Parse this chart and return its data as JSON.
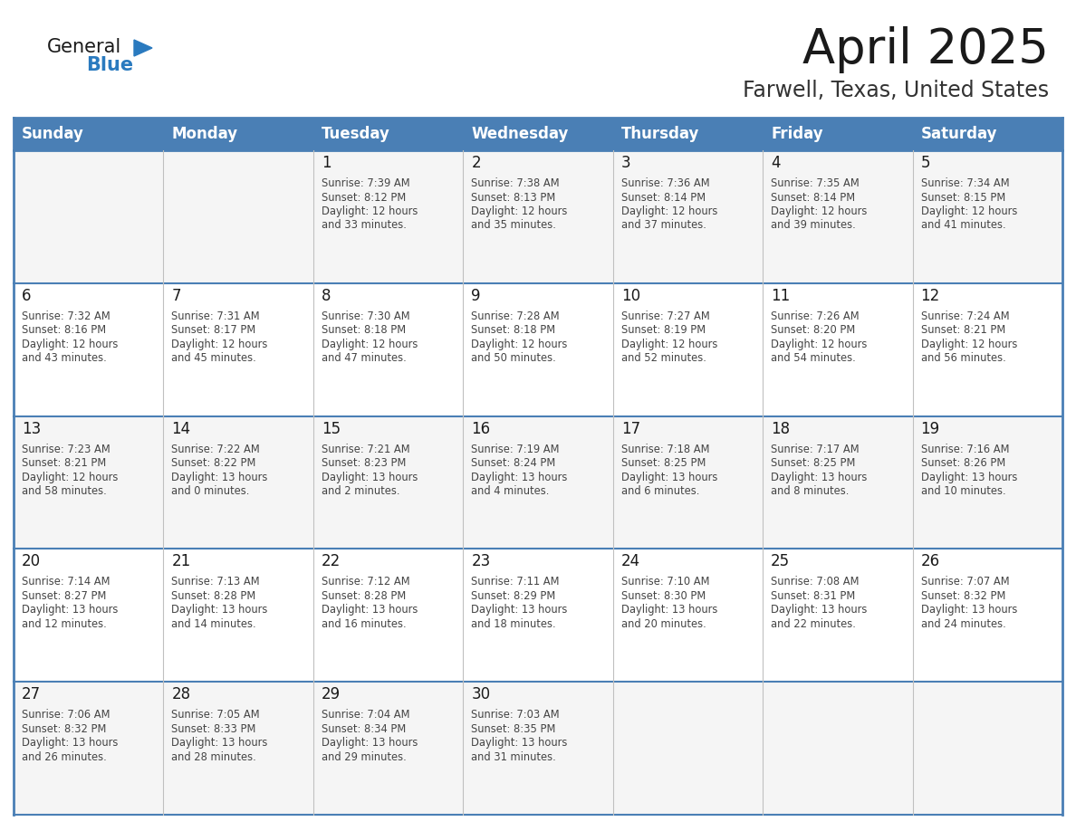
{
  "title": "April 2025",
  "subtitle": "Farwell, Texas, United States",
  "header_bg_color": "#4a7fb5",
  "header_text_color": "#ffffff",
  "row_bg_even": "#f5f5f5",
  "row_bg_odd": "#ffffff",
  "border_color": "#4a7fb5",
  "cell_divider_color": "#c0c0c0",
  "day_headers": [
    "Sunday",
    "Monday",
    "Tuesday",
    "Wednesday",
    "Thursday",
    "Friday",
    "Saturday"
  ],
  "title_color": "#1a1a1a",
  "subtitle_color": "#333333",
  "cell_text_color": "#444444",
  "day_num_color": "#1a1a1a",
  "logo_general_color": "#1a1a1a",
  "logo_blue_color": "#2a7abf",
  "weeks": [
    [
      {
        "day": null,
        "lines": []
      },
      {
        "day": null,
        "lines": []
      },
      {
        "day": "1",
        "lines": [
          "Sunrise: 7:39 AM",
          "Sunset: 8:12 PM",
          "Daylight: 12 hours",
          "and 33 minutes."
        ]
      },
      {
        "day": "2",
        "lines": [
          "Sunrise: 7:38 AM",
          "Sunset: 8:13 PM",
          "Daylight: 12 hours",
          "and 35 minutes."
        ]
      },
      {
        "day": "3",
        "lines": [
          "Sunrise: 7:36 AM",
          "Sunset: 8:14 PM",
          "Daylight: 12 hours",
          "and 37 minutes."
        ]
      },
      {
        "day": "4",
        "lines": [
          "Sunrise: 7:35 AM",
          "Sunset: 8:14 PM",
          "Daylight: 12 hours",
          "and 39 minutes."
        ]
      },
      {
        "day": "5",
        "lines": [
          "Sunrise: 7:34 AM",
          "Sunset: 8:15 PM",
          "Daylight: 12 hours",
          "and 41 minutes."
        ]
      }
    ],
    [
      {
        "day": "6",
        "lines": [
          "Sunrise: 7:32 AM",
          "Sunset: 8:16 PM",
          "Daylight: 12 hours",
          "and 43 minutes."
        ]
      },
      {
        "day": "7",
        "lines": [
          "Sunrise: 7:31 AM",
          "Sunset: 8:17 PM",
          "Daylight: 12 hours",
          "and 45 minutes."
        ]
      },
      {
        "day": "8",
        "lines": [
          "Sunrise: 7:30 AM",
          "Sunset: 8:18 PM",
          "Daylight: 12 hours",
          "and 47 minutes."
        ]
      },
      {
        "day": "9",
        "lines": [
          "Sunrise: 7:28 AM",
          "Sunset: 8:18 PM",
          "Daylight: 12 hours",
          "and 50 minutes."
        ]
      },
      {
        "day": "10",
        "lines": [
          "Sunrise: 7:27 AM",
          "Sunset: 8:19 PM",
          "Daylight: 12 hours",
          "and 52 minutes."
        ]
      },
      {
        "day": "11",
        "lines": [
          "Sunrise: 7:26 AM",
          "Sunset: 8:20 PM",
          "Daylight: 12 hours",
          "and 54 minutes."
        ]
      },
      {
        "day": "12",
        "lines": [
          "Sunrise: 7:24 AM",
          "Sunset: 8:21 PM",
          "Daylight: 12 hours",
          "and 56 minutes."
        ]
      }
    ],
    [
      {
        "day": "13",
        "lines": [
          "Sunrise: 7:23 AM",
          "Sunset: 8:21 PM",
          "Daylight: 12 hours",
          "and 58 minutes."
        ]
      },
      {
        "day": "14",
        "lines": [
          "Sunrise: 7:22 AM",
          "Sunset: 8:22 PM",
          "Daylight: 13 hours",
          "and 0 minutes."
        ]
      },
      {
        "day": "15",
        "lines": [
          "Sunrise: 7:21 AM",
          "Sunset: 8:23 PM",
          "Daylight: 13 hours",
          "and 2 minutes."
        ]
      },
      {
        "day": "16",
        "lines": [
          "Sunrise: 7:19 AM",
          "Sunset: 8:24 PM",
          "Daylight: 13 hours",
          "and 4 minutes."
        ]
      },
      {
        "day": "17",
        "lines": [
          "Sunrise: 7:18 AM",
          "Sunset: 8:25 PM",
          "Daylight: 13 hours",
          "and 6 minutes."
        ]
      },
      {
        "day": "18",
        "lines": [
          "Sunrise: 7:17 AM",
          "Sunset: 8:25 PM",
          "Daylight: 13 hours",
          "and 8 minutes."
        ]
      },
      {
        "day": "19",
        "lines": [
          "Sunrise: 7:16 AM",
          "Sunset: 8:26 PM",
          "Daylight: 13 hours",
          "and 10 minutes."
        ]
      }
    ],
    [
      {
        "day": "20",
        "lines": [
          "Sunrise: 7:14 AM",
          "Sunset: 8:27 PM",
          "Daylight: 13 hours",
          "and 12 minutes."
        ]
      },
      {
        "day": "21",
        "lines": [
          "Sunrise: 7:13 AM",
          "Sunset: 8:28 PM",
          "Daylight: 13 hours",
          "and 14 minutes."
        ]
      },
      {
        "day": "22",
        "lines": [
          "Sunrise: 7:12 AM",
          "Sunset: 8:28 PM",
          "Daylight: 13 hours",
          "and 16 minutes."
        ]
      },
      {
        "day": "23",
        "lines": [
          "Sunrise: 7:11 AM",
          "Sunset: 8:29 PM",
          "Daylight: 13 hours",
          "and 18 minutes."
        ]
      },
      {
        "day": "24",
        "lines": [
          "Sunrise: 7:10 AM",
          "Sunset: 8:30 PM",
          "Daylight: 13 hours",
          "and 20 minutes."
        ]
      },
      {
        "day": "25",
        "lines": [
          "Sunrise: 7:08 AM",
          "Sunset: 8:31 PM",
          "Daylight: 13 hours",
          "and 22 minutes."
        ]
      },
      {
        "day": "26",
        "lines": [
          "Sunrise: 7:07 AM",
          "Sunset: 8:32 PM",
          "Daylight: 13 hours",
          "and 24 minutes."
        ]
      }
    ],
    [
      {
        "day": "27",
        "lines": [
          "Sunrise: 7:06 AM",
          "Sunset: 8:32 PM",
          "Daylight: 13 hours",
          "and 26 minutes."
        ]
      },
      {
        "day": "28",
        "lines": [
          "Sunrise: 7:05 AM",
          "Sunset: 8:33 PM",
          "Daylight: 13 hours",
          "and 28 minutes."
        ]
      },
      {
        "day": "29",
        "lines": [
          "Sunrise: 7:04 AM",
          "Sunset: 8:34 PM",
          "Daylight: 13 hours",
          "and 29 minutes."
        ]
      },
      {
        "day": "30",
        "lines": [
          "Sunrise: 7:03 AM",
          "Sunset: 8:35 PM",
          "Daylight: 13 hours",
          "and 31 minutes."
        ]
      },
      {
        "day": null,
        "lines": []
      },
      {
        "day": null,
        "lines": []
      },
      {
        "day": null,
        "lines": []
      }
    ]
  ]
}
